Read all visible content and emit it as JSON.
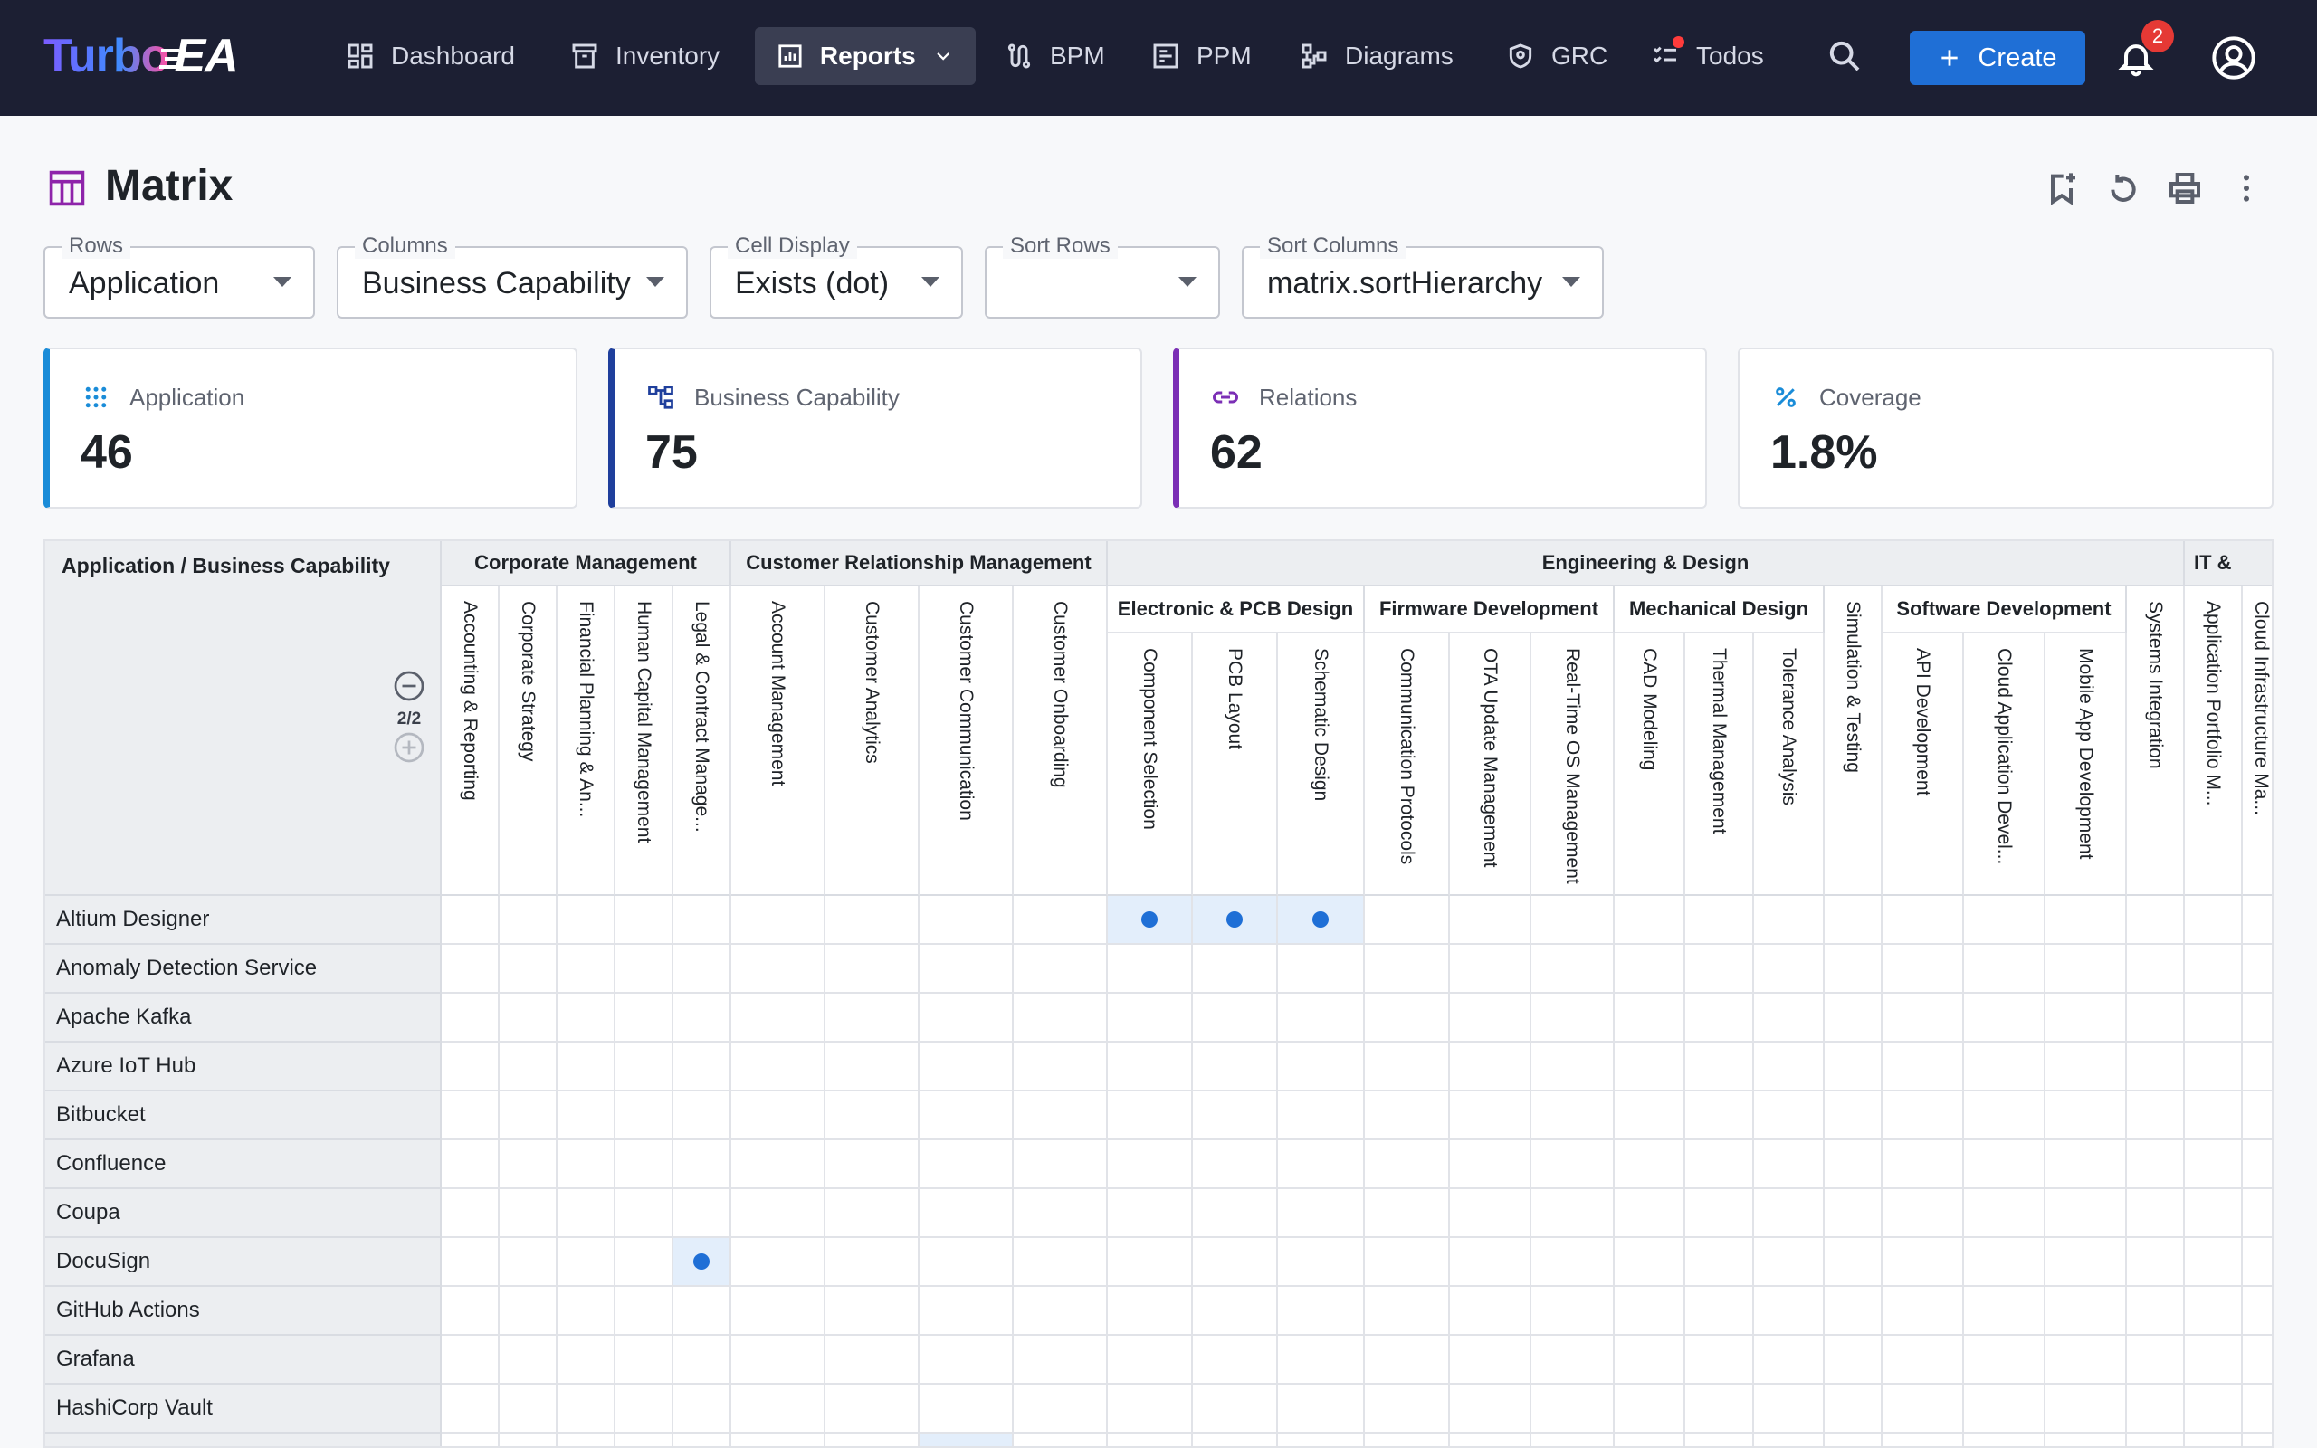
{
  "nav": {
    "logo_turbo": "Turbo",
    "logo_ea": "EA",
    "items": [
      {
        "label": "Dashboard",
        "icon": "dashboard-icon"
      },
      {
        "label": "Inventory",
        "icon": "inventory-icon"
      },
      {
        "label": "Reports",
        "icon": "reports-icon",
        "active": true
      },
      {
        "label": "BPM",
        "icon": "bpm-icon"
      },
      {
        "label": "PPM",
        "icon": "ppm-icon"
      },
      {
        "label": "Diagrams",
        "icon": "diagrams-icon"
      },
      {
        "label": "GRC",
        "icon": "grc-icon"
      },
      {
        "label": "Todos",
        "icon": "todos-icon"
      }
    ],
    "create_label": "Create",
    "notification_count": "2"
  },
  "page": {
    "title": "Matrix"
  },
  "filters": {
    "rows": {
      "label": "Rows",
      "value": "Application"
    },
    "columns": {
      "label": "Columns",
      "value": "Business Capability"
    },
    "cell_display": {
      "label": "Cell Display",
      "value": "Exists (dot)"
    },
    "sort_rows": {
      "label": "Sort Rows",
      "value": ""
    },
    "sort_columns": {
      "label": "Sort Columns",
      "value": "matrix.sortHierarchy"
    }
  },
  "stats": [
    {
      "label": "Application",
      "value": "46",
      "color": "#1a8cd8",
      "icon": "grid-dots-icon"
    },
    {
      "label": "Business Capability",
      "value": "75",
      "color": "#1f3f9c",
      "icon": "hierarchy-icon"
    },
    {
      "label": "Relations",
      "value": "62",
      "color": "#7b2fb5",
      "icon": "link-icon"
    },
    {
      "label": "Coverage",
      "value": "1.8%",
      "color": "#1a8cd8",
      "icon": "percent-icon"
    }
  ],
  "matrix": {
    "corner_title": "Application / Business Capability",
    "depth": "2/2",
    "groups": [
      {
        "label": "Corporate Management",
        "span": [
          0,
          4
        ]
      },
      {
        "label": "Customer Relationship Management",
        "span": [
          5,
          8
        ]
      },
      {
        "label": "Engineering & Design",
        "span": [
          9,
          22
        ]
      },
      {
        "label": "IT &",
        "span": [
          23,
          24
        ]
      }
    ],
    "subgroups": [
      {
        "label": "Electronic & PCB Design",
        "span": [
          9,
          11
        ]
      },
      {
        "label": "Firmware Development",
        "span": [
          12,
          14
        ]
      },
      {
        "label": "Mechanical Design",
        "span": [
          15,
          17
        ]
      },
      {
        "label": "",
        "span": [
          18,
          18
        ]
      },
      {
        "label": "Software Development",
        "span": [
          19,
          21
        ]
      },
      {
        "label": "",
        "span": [
          22,
          22
        ]
      }
    ],
    "columns": [
      "Accounting & Reporting",
      "Corporate Strategy",
      "Financial Planning & An...",
      "Human Capital Management",
      "Legal & Contract Manage...",
      "Account Management",
      "Customer Analytics",
      "Customer Communication",
      "Customer Onboarding",
      "Component Selection",
      "PCB Layout",
      "Schematic Design",
      "Communication Protocols",
      "OTA Update Management",
      "Real-Time OS Management",
      "CAD Modeling",
      "Thermal Management",
      "Tolerance Analysis",
      "Simulation & Testing",
      "API Development",
      "Cloud Application Devel...",
      "Mobile App Development",
      "Systems Integration",
      "Application Portfolio M...",
      "Cloud Infrastructure Ma..."
    ],
    "rows": [
      {
        "label": "Altium Designer",
        "on": [
          9,
          10,
          11
        ]
      },
      {
        "label": "Anomaly Detection Service",
        "on": []
      },
      {
        "label": "Apache Kafka",
        "on": []
      },
      {
        "label": "Azure IoT Hub",
        "on": []
      },
      {
        "label": "Bitbucket",
        "on": []
      },
      {
        "label": "Confluence",
        "on": []
      },
      {
        "label": "Coupa",
        "on": []
      },
      {
        "label": "DocuSign",
        "on": [
          4
        ]
      },
      {
        "label": "GitHub Actions",
        "on": []
      },
      {
        "label": "Grafana",
        "on": []
      },
      {
        "label": "HashiCorp Vault",
        "on": []
      },
      {
        "label": "",
        "on": [
          7
        ]
      }
    ]
  }
}
